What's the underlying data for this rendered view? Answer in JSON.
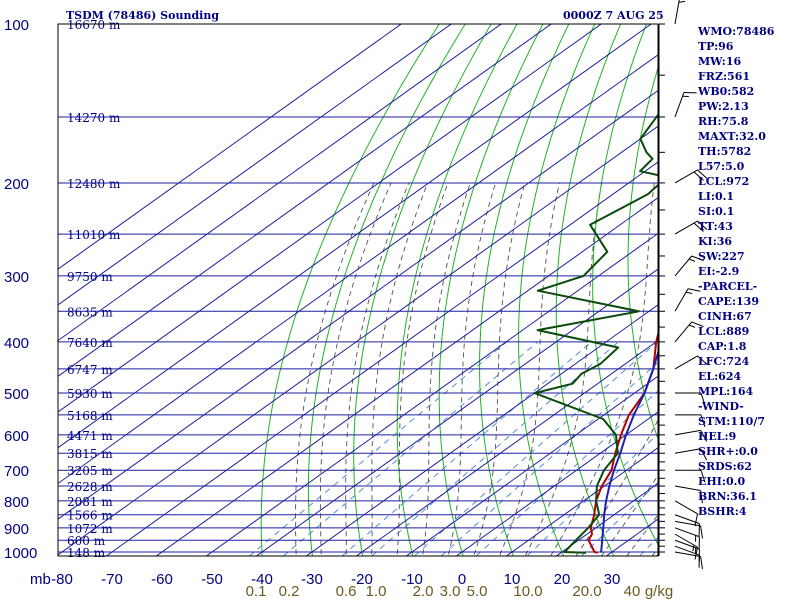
{
  "header": {
    "title": "TSDM (78486) Sounding",
    "valid_time": "0000Z  7 AUG 25"
  },
  "indices": [
    "WMO:78486",
    "TP:96",
    "MW:16",
    "FRZ:561",
    "WB0:582",
    "PW:2.13",
    "RH:75.8",
    "MAXT:32.0",
    "TH:5782",
    "L57:5.0",
    "LCL:972",
    "LI:0.1",
    "SI:0.1",
    "TT:43",
    "KI:36",
    "SW:227",
    "EI:-2.9",
    "-PARCEL-",
    "CAPE:139",
    "CINH:67",
    "LCL:889",
    "CAP:1.8",
    "LFC:724",
    "EL:624",
    "MPL:164",
    "-WIND-",
    "STM:110/7",
    "HEL:9",
    "SHR+:0.0",
    "SRDS:62",
    "EHI:0.0",
    "BRN:36.1",
    "BSHR:4"
  ],
  "colors": {
    "frame": "#000000",
    "isobar": "#1e1ea0",
    "isotherm": "#1e1ea0",
    "dry_adiabat": "#22b222",
    "moist_adiabat": "#505050",
    "mixing_ratio": "#4f8fd6",
    "temperature": "#b40000",
    "dewpoint": "#0a4a0a",
    "parcel": "#1f1fb0",
    "label": "#000080",
    "mixing_ratio_label": "#6b5a1e"
  },
  "chart_data": {
    "type": "skew-t log-p",
    "title": "TSDM (78486) Sounding",
    "valid_time": "0000Z  7 AUG 25",
    "pressure_unit": "mb",
    "xlim": [
      -80,
      40
    ],
    "ylim_pressure": [
      1000,
      100
    ],
    "grid": true,
    "legend": "right",
    "pressure_levels": [
      100,
      200,
      300,
      400,
      500,
      600,
      700,
      800,
      900,
      1000
    ],
    "temperature_ticks": [
      -80,
      -70,
      -60,
      -50,
      -40,
      -30,
      -20,
      -10,
      0,
      10,
      20,
      30
    ],
    "mixing_ratio_labels": [
      "0.1",
      "0.2",
      "0.6",
      "1.0",
      "2.0",
      "3.0",
      "5.0",
      "10.0",
      "20.0",
      "40",
      "g/kg"
    ],
    "mixing_ratio_values": [
      0.1,
      0.2,
      0.6,
      1.0,
      2.0,
      3.0,
      5.0,
      10.0,
      20.0,
      40
    ],
    "height_labels": [
      {
        "p": 100,
        "label": "16670 m"
      },
      {
        "p": 150,
        "label": "14270 m"
      },
      {
        "p": 200,
        "label": "12480 m"
      },
      {
        "p": 250,
        "label": "11010 m"
      },
      {
        "p": 300,
        "label": "9750 m"
      },
      {
        "p": 350,
        "label": "8635 m"
      },
      {
        "p": 400,
        "label": "7640 m"
      },
      {
        "p": 450,
        "label": "6747 m"
      },
      {
        "p": 500,
        "label": "5930 m"
      },
      {
        "p": 550,
        "label": "5168 m"
      },
      {
        "p": 600,
        "label": "4471 m"
      },
      {
        "p": 650,
        "label": "3815 m"
      },
      {
        "p": 700,
        "label": "3205 m"
      },
      {
        "p": 750,
        "label": "2628 m"
      },
      {
        "p": 800,
        "label": "2081 m"
      },
      {
        "p": 850,
        "label": "1566 m"
      },
      {
        "p": 900,
        "label": "1072 m"
      },
      {
        "p": 950,
        "label": "600 m"
      },
      {
        "p": 1000,
        "label": "148 m"
      }
    ],
    "series": [
      {
        "name": "temperature",
        "points": [
          [
            1003,
            27.4
          ],
          [
            1000,
            26.5
          ],
          [
            950,
            22
          ],
          [
            925,
            21
          ],
          [
            900,
            19
          ],
          [
            850,
            16
          ],
          [
            800,
            12.5
          ],
          [
            750,
            9.5
          ],
          [
            700,
            7.0
          ],
          [
            650,
            3
          ],
          [
            600,
            -1
          ],
          [
            550,
            -5
          ],
          [
            500,
            -8
          ],
          [
            450,
            -13
          ],
          [
            400,
            -20
          ],
          [
            350,
            -27
          ],
          [
            300,
            -35
          ],
          [
            250,
            -45
          ],
          [
            200,
            -56
          ],
          [
            170,
            -62
          ],
          [
            150,
            -67
          ],
          [
            125,
            -70
          ],
          [
            100,
            -76
          ]
        ]
      },
      {
        "name": "dewpoint",
        "points": [
          [
            1003,
            25.0
          ],
          [
            1000,
            20.5
          ],
          [
            950,
            19.5
          ],
          [
            900,
            18.5
          ],
          [
            850,
            17
          ],
          [
            800,
            12.5
          ],
          [
            750,
            8.5
          ],
          [
            700,
            5.5
          ],
          [
            650,
            3.5
          ],
          [
            600,
            -2
          ],
          [
            560,
            -9
          ],
          [
            500,
            -30
          ],
          [
            480,
            -25
          ],
          [
            460,
            -26
          ],
          [
            440,
            -25
          ],
          [
            410,
            -26
          ],
          [
            380,
            -47
          ],
          [
            350,
            -32
          ],
          [
            320,
            -58
          ],
          [
            300,
            -53
          ],
          [
            270,
            -55
          ],
          [
            240,
            -66
          ],
          [
            210,
            -63
          ],
          [
            195,
            -64
          ],
          [
            190,
            -71
          ],
          [
            180,
            -72
          ],
          [
            175,
            -75
          ],
          [
            165,
            -80
          ],
          [
            140,
            -85
          ],
          [
            110,
            -95
          ]
        ]
      },
      {
        "name": "parcel",
        "points": [
          [
            1003,
            28
          ],
          [
            970,
            26
          ],
          [
            900,
            21.5
          ],
          [
            850,
            18
          ],
          [
            800,
            14.5
          ],
          [
            750,
            11
          ],
          [
            700,
            7.5
          ],
          [
            650,
            4
          ],
          [
            600,
            0
          ],
          [
            550,
            -4
          ],
          [
            500,
            -8
          ],
          [
            450,
            -13
          ],
          [
            400,
            -19
          ],
          [
            350,
            -26
          ],
          [
            300,
            -34
          ],
          [
            250,
            -44
          ],
          [
            200,
            -55
          ],
          [
            170,
            -63
          ],
          [
            150,
            -68
          ],
          [
            130,
            -74
          ],
          [
            110,
            -80
          ]
        ]
      }
    ],
    "wind_barbs": [
      {
        "p": 1000,
        "dir": 100,
        "spd": 10
      },
      {
        "p": 975,
        "dir": 110,
        "spd": 10
      },
      {
        "p": 950,
        "dir": 110,
        "spd": 15
      },
      {
        "p": 925,
        "dir": 120,
        "spd": 15
      },
      {
        "p": 900,
        "dir": 110,
        "spd": 15
      },
      {
        "p": 875,
        "dir": 100,
        "spd": 10
      },
      {
        "p": 850,
        "dir": 110,
        "spd": 10
      },
      {
        "p": 800,
        "dir": 120,
        "spd": 10
      },
      {
        "p": 750,
        "dir": 100,
        "spd": 10
      },
      {
        "p": 700,
        "dir": 90,
        "spd": 10
      },
      {
        "p": 650,
        "dir": 80,
        "spd": 10
      },
      {
        "p": 600,
        "dir": 80,
        "spd": 10
      },
      {
        "p": 550,
        "dir": 90,
        "spd": 10
      },
      {
        "p": 500,
        "dir": 90,
        "spd": 10
      },
      {
        "p": 450,
        "dir": 60,
        "spd": 10
      },
      {
        "p": 400,
        "dir": 40,
        "spd": 15
      },
      {
        "p": 350,
        "dir": 30,
        "spd": 15
      },
      {
        "p": 300,
        "dir": 40,
        "spd": 15
      },
      {
        "p": 250,
        "dir": 60,
        "spd": 20
      },
      {
        "p": 200,
        "dir": 60,
        "spd": 20
      },
      {
        "p": 150,
        "dir": 20,
        "spd": 15
      },
      {
        "p": 100,
        "dir": 10,
        "spd": 15
      }
    ]
  }
}
